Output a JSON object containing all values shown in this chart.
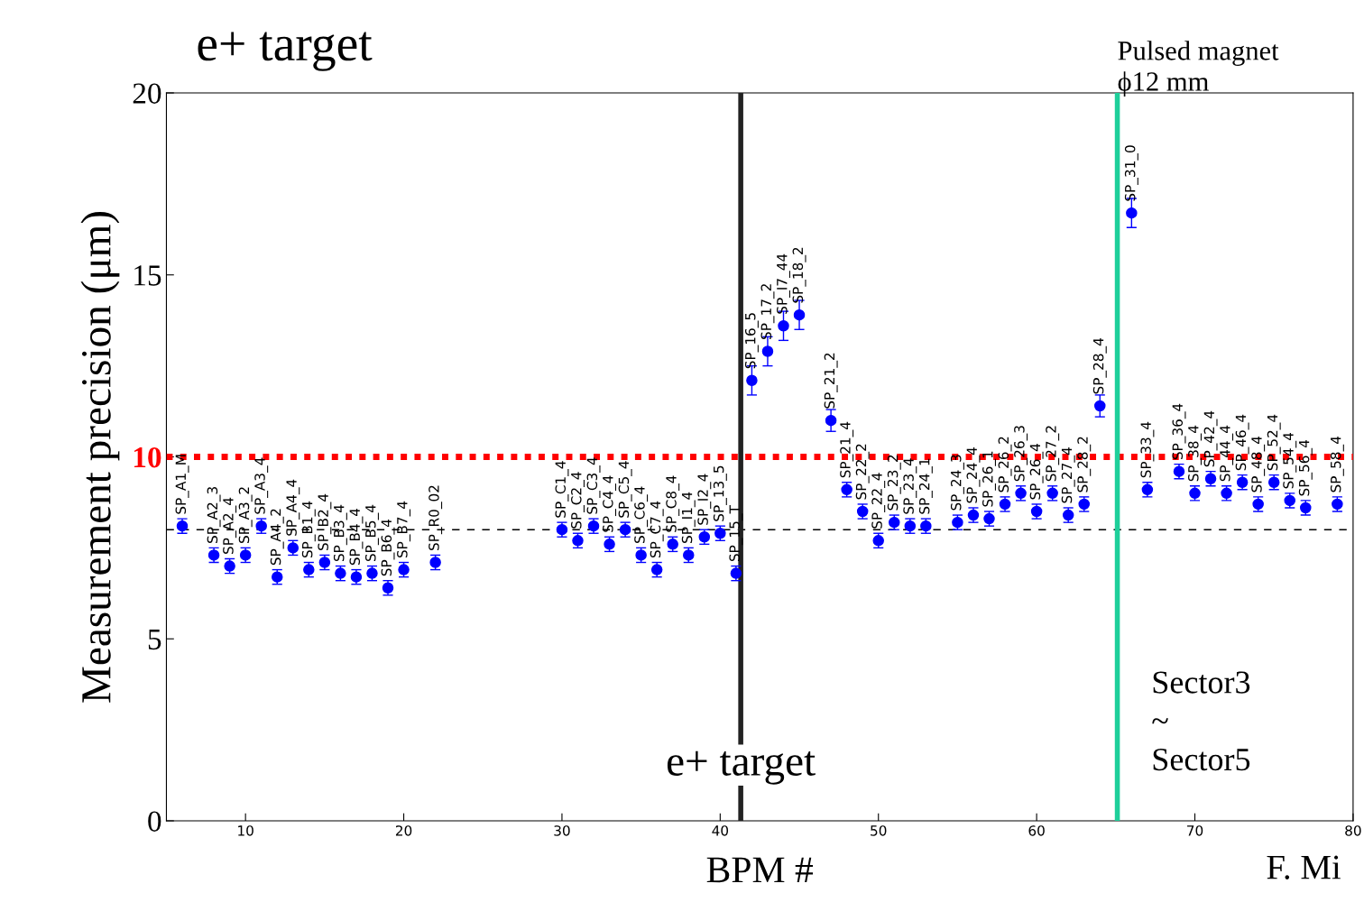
{
  "chart_data": {
    "type": "scatter",
    "xlabel": "BPM #",
    "ylabel": "Measurement precision (μm)",
    "x": [
      6,
      8,
      9,
      10,
      11,
      12,
      13,
      14,
      15,
      16,
      17,
      18,
      19,
      20,
      22,
      30,
      31,
      32,
      33,
      34,
      35,
      36,
      37,
      38,
      39,
      40,
      41,
      42,
      43,
      44,
      45,
      47,
      48,
      49,
      50,
      51,
      52,
      53,
      55,
      56,
      57,
      58,
      59,
      60,
      61,
      62,
      63,
      64,
      66,
      67,
      69,
      70,
      71,
      72,
      73,
      74,
      75,
      76,
      77,
      79
    ],
    "series": [
      {
        "color": "#0000ff",
        "values": [
          8.1,
          7.3,
          7.0,
          7.3,
          8.1,
          6.7,
          7.5,
          6.9,
          7.1,
          6.8,
          6.7,
          6.8,
          6.4,
          6.9,
          7.1,
          8.0,
          7.7,
          8.1,
          7.6,
          8.0,
          7.3,
          6.9,
          7.6,
          7.3,
          7.8,
          7.9,
          6.8,
          12.1,
          12.9,
          13.6,
          13.9,
          11.0,
          9.1,
          8.5,
          7.7,
          8.2,
          8.1,
          8.1,
          8.2,
          8.4,
          8.3,
          8.7,
          9.0,
          8.5,
          9.0,
          8.4,
          8.7,
          11.4,
          16.7,
          9.1,
          9.6,
          9.0,
          9.4,
          9.0,
          9.3,
          8.7,
          9.3,
          8.8,
          8.6,
          8.7
        ],
        "errors": [
          0.2,
          0.2,
          0.2,
          0.2,
          0.2,
          0.2,
          0.2,
          0.2,
          0.2,
          0.2,
          0.2,
          0.2,
          0.2,
          0.2,
          0.2,
          0.2,
          0.2,
          0.2,
          0.2,
          0.2,
          0.2,
          0.2,
          0.2,
          0.2,
          0.2,
          0.2,
          0.2,
          0.4,
          0.4,
          0.4,
          0.4,
          0.3,
          0.2,
          0.2,
          0.2,
          0.2,
          0.2,
          0.2,
          0.2,
          0.2,
          0.2,
          0.2,
          0.2,
          0.2,
          0.2,
          0.2,
          0.2,
          0.3,
          0.4,
          0.2,
          0.2,
          0.2,
          0.2,
          0.2,
          0.2,
          0.2,
          0.2,
          0.2,
          0.2,
          0.2
        ]
      }
    ],
    "marker": "circle",
    "xlim": [
      5,
      80
    ],
    "xticks": [
      10,
      20,
      30,
      40,
      50,
      60,
      70,
      80
    ],
    "ylim": [
      0,
      20
    ],
    "yticks": [
      0,
      5,
      10,
      15,
      20
    ],
    "grid": false,
    "ref_lines": [
      {
        "axis": "y",
        "value": 10,
        "color": "#ff0000",
        "line_style": "dotted"
      },
      {
        "axis": "y",
        "value": 8,
        "color": "#000000",
        "line_style": "dashed"
      },
      {
        "axis": "x",
        "value": 41.3,
        "color": "#222222",
        "line_style": "solid",
        "label": "e+ target"
      },
      {
        "axis": "x",
        "value": 65.1,
        "color": "#1ecf9a",
        "line_style": "solid",
        "label": "Pulsed magnet\nϕ12 mm"
      }
    ],
    "annotations": [
      {
        "text": "SP_A1_M",
        "x": 6,
        "y": 8.1
      },
      {
        "text": "SP_A2_3",
        "x": 8,
        "y": 7.3
      },
      {
        "text": "SP_A2_4",
        "x": 9,
        "y": 7.0
      },
      {
        "text": "SP_A3_2",
        "x": 10,
        "y": 7.3
      },
      {
        "text": "SP_A3_4",
        "x": 11,
        "y": 8.1
      },
      {
        "text": "SP_A4_2",
        "x": 12,
        "y": 6.7
      },
      {
        "text": "SP_A4_4",
        "x": 13,
        "y": 7.5
      },
      {
        "text": "SP_B1_4",
        "x": 14,
        "y": 6.9
      },
      {
        "text": "SP_B2_4",
        "x": 15,
        "y": 7.1
      },
      {
        "text": "SP_B3_4",
        "x": 16,
        "y": 6.8
      },
      {
        "text": "SP_B4_4",
        "x": 17,
        "y": 6.7
      },
      {
        "text": "SP_B5_4",
        "x": 18,
        "y": 6.8
      },
      {
        "text": "SP_B6_4",
        "x": 19,
        "y": 6.4
      },
      {
        "text": "SP_B7_4",
        "x": 20,
        "y": 6.9
      },
      {
        "text": "SP_R0_02",
        "x": 22,
        "y": 7.1
      },
      {
        "text": "SP_C1_4",
        "x": 30,
        "y": 8.0
      },
      {
        "text": "SP_C2_4",
        "x": 31,
        "y": 7.7
      },
      {
        "text": "SP_C3_4",
        "x": 32,
        "y": 8.1
      },
      {
        "text": "SP_C4_4",
        "x": 33,
        "y": 7.6
      },
      {
        "text": "SP_C5_4",
        "x": 34,
        "y": 8.0
      },
      {
        "text": "SP_C6_4",
        "x": 35,
        "y": 7.3
      },
      {
        "text": "SP_C7_4",
        "x": 36,
        "y": 6.9
      },
      {
        "text": "SP_C8_4",
        "x": 37,
        "y": 7.6
      },
      {
        "text": "SP_I1_4",
        "x": 38,
        "y": 7.3
      },
      {
        "text": "SP_I2_4",
        "x": 39,
        "y": 7.8
      },
      {
        "text": "SP_13_5",
        "x": 40,
        "y": 7.9
      },
      {
        "text": "SP_15_T",
        "x": 41,
        "y": 6.8
      },
      {
        "text": "SP_16_5",
        "x": 42,
        "y": 12.1
      },
      {
        "text": "SP_17_2",
        "x": 43,
        "y": 12.9
      },
      {
        "text": "SP_I7_44",
        "x": 44,
        "y": 13.6
      },
      {
        "text": "SP_18_2",
        "x": 45,
        "y": 13.9
      },
      {
        "text": "SP_21_2",
        "x": 47,
        "y": 11.0
      },
      {
        "text": "SP_21_4",
        "x": 48,
        "y": 9.1
      },
      {
        "text": "SP_22_2",
        "x": 49,
        "y": 8.5
      },
      {
        "text": "SP_22_4",
        "x": 50,
        "y": 7.7
      },
      {
        "text": "SP_23_2",
        "x": 51,
        "y": 8.2
      },
      {
        "text": "SP_23_4",
        "x": 52,
        "y": 8.1
      },
      {
        "text": "SP_24_1",
        "x": 53,
        "y": 8.1
      },
      {
        "text": "SP_24_3",
        "x": 55,
        "y": 8.2
      },
      {
        "text": "SP_24_4",
        "x": 56,
        "y": 8.4
      },
      {
        "text": "SP_26_1",
        "x": 57,
        "y": 8.3
      },
      {
        "text": "SP_26_2",
        "x": 58,
        "y": 8.7
      },
      {
        "text": "SP_26_3",
        "x": 59,
        "y": 9.0
      },
      {
        "text": "SP_26_4",
        "x": 60,
        "y": 8.5
      },
      {
        "text": "SP_27_2",
        "x": 61,
        "y": 9.0
      },
      {
        "text": "SP_27_4",
        "x": 62,
        "y": 8.4
      },
      {
        "text": "SP_28_2",
        "x": 63,
        "y": 8.7
      },
      {
        "text": "SP_28_4",
        "x": 64,
        "y": 11.4
      },
      {
        "text": "SP_31_0",
        "x": 66,
        "y": 16.7
      },
      {
        "text": "SP_33_4",
        "x": 67,
        "y": 9.1
      },
      {
        "text": "SP_36_4",
        "x": 69,
        "y": 9.6
      },
      {
        "text": "SP_38_4",
        "x": 70,
        "y": 9.0
      },
      {
        "text": "SP_42_4",
        "x": 71,
        "y": 9.4
      },
      {
        "text": "SP_44_4",
        "x": 72,
        "y": 9.0
      },
      {
        "text": "SP_46_4",
        "x": 73,
        "y": 9.3
      },
      {
        "text": "SP_48_4",
        "x": 74,
        "y": 8.7
      },
      {
        "text": "SP_52_4",
        "x": 75,
        "y": 9.3
      },
      {
        "text": "SP_54_4",
        "x": 76,
        "y": 8.8
      },
      {
        "text": "SP_56_4",
        "x": 77,
        "y": 8.6
      },
      {
        "text": "SP_58_4",
        "x": 79,
        "y": 8.7
      },
      "e+ target",
      "Sector3\n~\nSector5",
      "F. Mi"
    ]
  }
}
